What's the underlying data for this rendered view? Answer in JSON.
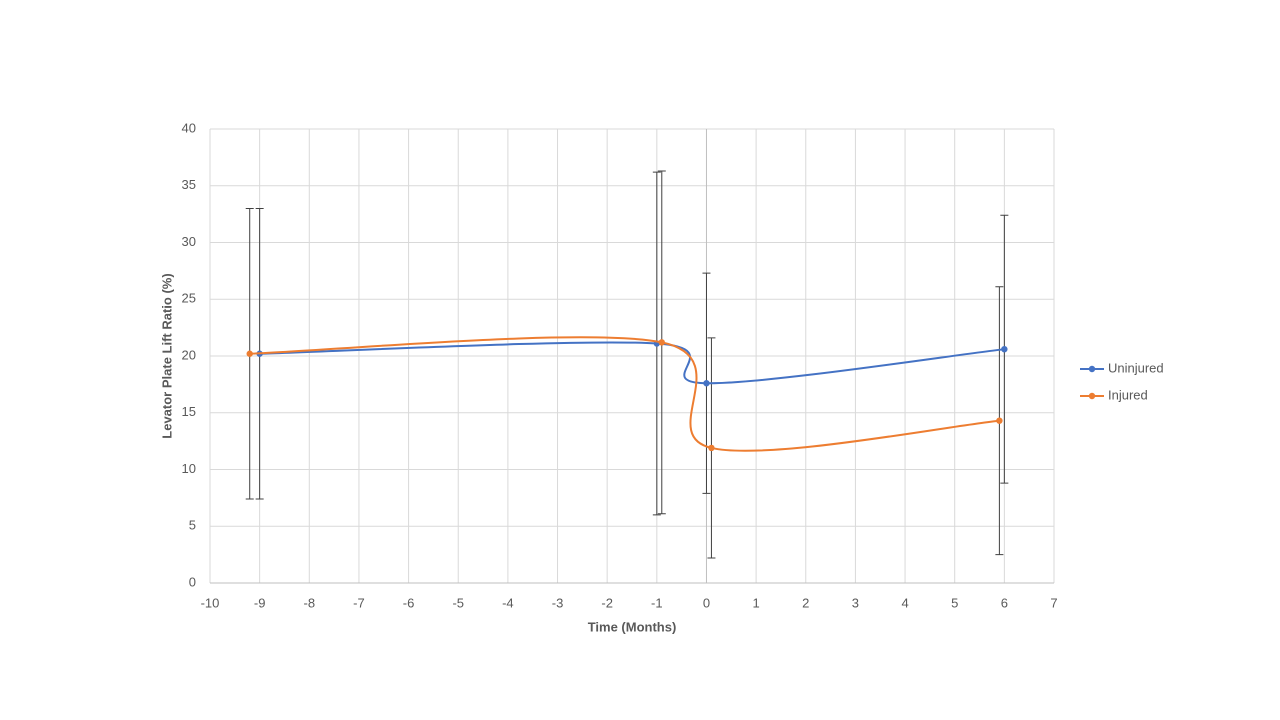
{
  "chart_data": {
    "type": "scatter",
    "x_label": "Time (Months)",
    "y_label": "Levator Plate Lift Ratio (%)",
    "xlim": [
      -10,
      7
    ],
    "xticks": [
      -10,
      -9,
      -8,
      -7,
      -6,
      -5,
      -4,
      -3,
      -2,
      -1,
      0,
      1,
      2,
      3,
      4,
      5,
      6,
      7
    ],
    "ylim": [
      0,
      40
    ],
    "yticks": [
      0,
      5,
      10,
      15,
      20,
      25,
      30,
      35,
      40
    ],
    "grid": true,
    "smooth": true,
    "legend": "right",
    "series": [
      {
        "name": "Uninjured",
        "color": "#4472c4",
        "x": [
          -9,
          -1,
          0,
          6
        ],
        "values": [
          20.2,
          21.1,
          17.6,
          20.6
        ],
        "errors": [
          12.8,
          15.1,
          9.7,
          11.8
        ]
      },
      {
        "name": "Injured",
        "color": "#ed7d31",
        "x": [
          -9.2,
          -0.9,
          0.1,
          5.9
        ],
        "values": [
          20.2,
          21.2,
          11.9,
          14.3
        ],
        "errors": [
          12.8,
          15.1,
          9.7,
          11.8
        ]
      }
    ]
  }
}
